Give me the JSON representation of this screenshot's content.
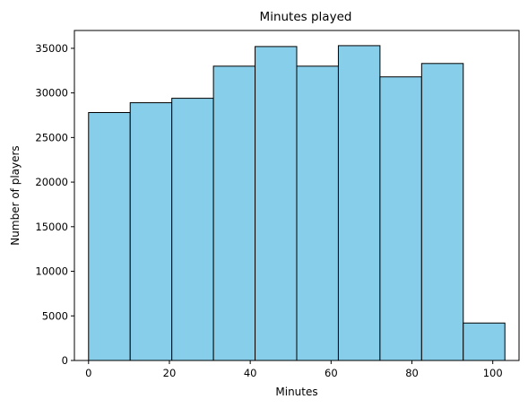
{
  "chart_data": {
    "type": "bar",
    "title": "Minutes played",
    "xlabel": "Minutes",
    "ylabel": "Number of players",
    "x_ticks": [
      0,
      20,
      40,
      60,
      80,
      100
    ],
    "y_ticks": [
      0,
      5000,
      10000,
      15000,
      20000,
      25000,
      30000,
      35000
    ],
    "xlim": [
      -3.5,
      106.5
    ],
    "ylim": [
      0,
      37000
    ],
    "bins": [
      {
        "start": 0.0,
        "end": 10.3,
        "value": 27800
      },
      {
        "start": 10.3,
        "end": 20.6,
        "value": 28900
      },
      {
        "start": 20.6,
        "end": 30.9,
        "value": 29400
      },
      {
        "start": 30.9,
        "end": 41.2,
        "value": 33000
      },
      {
        "start": 41.2,
        "end": 51.5,
        "value": 35200
      },
      {
        "start": 51.5,
        "end": 61.8,
        "value": 33000
      },
      {
        "start": 61.8,
        "end": 72.1,
        "value": 35300
      },
      {
        "start": 72.1,
        "end": 82.4,
        "value": 31800
      },
      {
        "start": 82.4,
        "end": 92.7,
        "value": 33300
      },
      {
        "start": 92.7,
        "end": 103.0,
        "value": 4200
      }
    ],
    "bar_color": "#87ceeb",
    "edge_color": "#000000",
    "grid": false,
    "legend": "none"
  }
}
